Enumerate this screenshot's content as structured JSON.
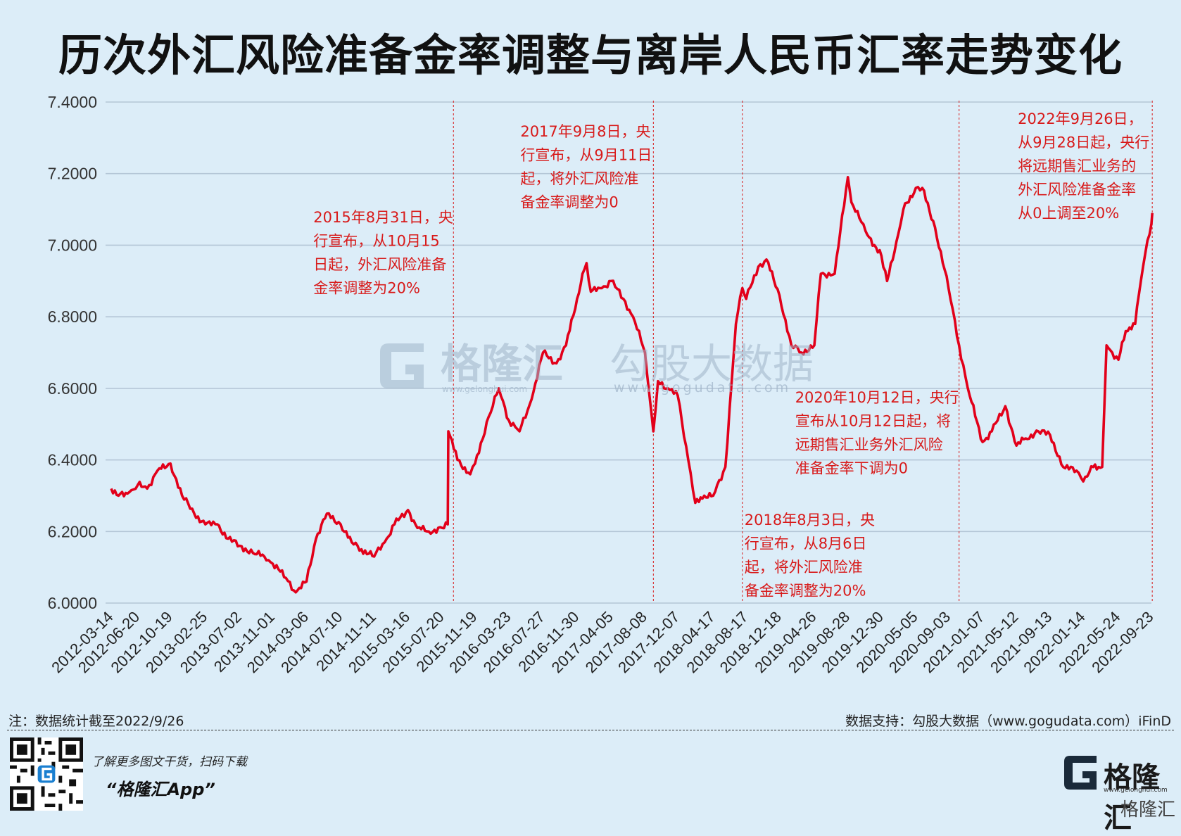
{
  "title": "历次外汇风险准备金率调整与离岸人民币汇率走势变化",
  "footer": {
    "note": "注：数据统计截至2022/9/26",
    "source": "数据支持：勾股大数据（www.gogudata.com）iFinD",
    "promo": "了解更多图文干货，扫码下载",
    "app": "“格隆汇App”",
    "brand": "格隆汇",
    "brand_url": "www.gelonghui.com",
    "brand_sub": "格隆汇"
  },
  "watermark": {
    "left_text": "格隆汇",
    "left_url": "www.gelonghui.com",
    "right_text": "勾股大数据",
    "right_url": "www.gogudata.com"
  },
  "colors": {
    "line": "#e2001a",
    "annotation": "#d81a1a",
    "grid": "#b4c6d6",
    "background": "#dcedf8"
  },
  "chart_data": {
    "type": "line",
    "title": "历次外汇风险准备金率调整与离岸人民币汇率走势变化",
    "xlabel": "",
    "ylabel": "",
    "ylim": [
      6.0,
      7.4
    ],
    "ytick_labels": [
      "6.0000",
      "6.2000",
      "6.4000",
      "6.6000",
      "6.8000",
      "7.0000",
      "7.2000",
      "7.4000"
    ],
    "ytick_values": [
      6.0,
      6.2,
      6.4,
      6.6,
      6.8,
      7.0,
      7.2,
      7.4
    ],
    "xtick_labels": [
      "2012-03-14",
      "2012-06-20",
      "2012-10-19",
      "2013-02-25",
      "2013-07-02",
      "2013-11-01",
      "2014-03-06",
      "2014-07-10",
      "2014-11-11",
      "2015-03-16",
      "2015-07-20",
      "2015-11-19",
      "2016-03-23",
      "2016-07-27",
      "2016-11-30",
      "2017-04-05",
      "2017-08-08",
      "2017-12-07",
      "2018-04-17",
      "2018-08-17",
      "2018-12-18",
      "2019-04-26",
      "2019-08-28",
      "2019-12-30",
      "2020-05-05",
      "2020-09-03",
      "2021-01-07",
      "2021-05-12",
      "2021-09-13",
      "2022-01-14",
      "2022-05-24",
      "2022-09-23"
    ],
    "grid": true,
    "series": [
      {
        "x": [
          "2012-03-14",
          "2012-04-10",
          "2012-05-20",
          "2012-06-20",
          "2012-07-25",
          "2012-09-01",
          "2012-10-19",
          "2012-12-01",
          "2013-01-15",
          "2013-02-25",
          "2013-04-10",
          "2013-05-20",
          "2013-07-02",
          "2013-08-20",
          "2013-10-01",
          "2013-11-01",
          "2013-12-20",
          "2014-01-25",
          "2014-03-06",
          "2014-04-10",
          "2014-05-20",
          "2014-07-10",
          "2014-08-20",
          "2014-09-25",
          "2014-11-11",
          "2014-12-20",
          "2015-01-25",
          "2015-03-16",
          "2015-04-20",
          "2015-06-01",
          "2015-07-20",
          "2015-08-10",
          "2015-08-12",
          "2015-09-15",
          "2015-11-01",
          "2015-11-19",
          "2016-01-08",
          "2016-02-15",
          "2016-03-23",
          "2016-05-01",
          "2016-06-15",
          "2016-07-27",
          "2016-09-15",
          "2016-10-20",
          "2016-11-30",
          "2016-12-20",
          "2017-01-04",
          "2017-01-20",
          "2017-03-01",
          "2017-04-05",
          "2017-05-20",
          "2017-06-25",
          "2017-08-08",
          "2017-09-08",
          "2017-09-25",
          "2017-11-01",
          "2017-12-07",
          "2018-01-15",
          "2018-02-10",
          "2018-03-15",
          "2018-04-17",
          "2018-06-01",
          "2018-07-10",
          "2018-08-03",
          "2018-08-17",
          "2018-10-01",
          "2018-10-31",
          "2018-12-18",
          "2019-01-31",
          "2019-03-10",
          "2019-04-26",
          "2019-05-20",
          "2019-07-10",
          "2019-08-28",
          "2019-09-10",
          "2019-11-01",
          "2019-12-30",
          "2020-01-20",
          "2020-03-01",
          "2020-03-20",
          "2020-05-05",
          "2020-05-29",
          "2020-07-15",
          "2020-09-03",
          "2020-10-12",
          "2020-11-20",
          "2021-01-07",
          "2021-02-10",
          "2021-04-01",
          "2021-05-12",
          "2021-06-15",
          "2021-08-01",
          "2021-09-13",
          "2021-11-01",
          "2021-12-20",
          "2022-01-14",
          "2022-02-20",
          "2022-03-25",
          "2022-04-10",
          "2022-05-01",
          "2022-05-24",
          "2022-06-20",
          "2022-07-25",
          "2022-08-15",
          "2022-09-01",
          "2022-09-16",
          "2022-09-23",
          "2022-09-26"
        ],
        "values": [
          6.32,
          6.3,
          6.31,
          6.33,
          6.32,
          6.37,
          6.39,
          6.3,
          6.25,
          6.22,
          6.22,
          6.18,
          6.16,
          6.14,
          6.13,
          6.11,
          6.07,
          6.03,
          6.06,
          6.18,
          6.25,
          6.22,
          6.17,
          6.15,
          6.13,
          6.17,
          6.22,
          6.26,
          6.21,
          6.2,
          6.21,
          6.22,
          6.48,
          6.4,
          6.36,
          6.39,
          6.52,
          6.6,
          6.51,
          6.48,
          6.57,
          6.7,
          6.67,
          6.72,
          6.85,
          6.92,
          6.95,
          6.87,
          6.88,
          6.9,
          6.85,
          6.8,
          6.7,
          6.48,
          6.62,
          6.6,
          6.58,
          6.4,
          6.28,
          6.3,
          6.3,
          6.38,
          6.78,
          6.88,
          6.85,
          6.94,
          6.96,
          6.86,
          6.72,
          6.7,
          6.72,
          6.92,
          6.92,
          7.19,
          7.12,
          7.04,
          6.97,
          6.9,
          7.03,
          7.1,
          7.16,
          7.16,
          7.05,
          6.88,
          6.72,
          6.58,
          6.45,
          6.48,
          6.55,
          6.44,
          6.46,
          6.48,
          6.47,
          6.38,
          6.37,
          6.34,
          6.38,
          6.38,
          6.72,
          6.7,
          6.68,
          6.76,
          6.78,
          6.9,
          6.98,
          7.03,
          7.06,
          7.09
        ]
      }
    ],
    "event_lines": [
      {
        "date": "2015-08-31",
        "text": "2015年8月31日，央行宣布，从10月15日起，外汇风险准备金率调整为20%"
      },
      {
        "date": "2017-09-08",
        "text": "2017年9月8日，央行宣布，从9月11日起，将外汇风险准备金率调整为0"
      },
      {
        "date": "2018-08-03",
        "text": "2018年8月3日，央行宣布，从8月6日起，将外汇风险准备金率调整为20%"
      },
      {
        "date": "2020-10-12",
        "text": "2020年10月12日，央行宣布从10月12日起，将远期售汇业务外汇风险准备金率下调为0"
      },
      {
        "date": "2022-09-26",
        "text": "2022年9月26日，从9月28日起，央行将远期售汇业务的外汇风险准备金率从0上调至20%"
      }
    ],
    "annotation_lines": [
      [
        "2015年8月31日，央",
        "行宣布，从10月15",
        "日起，外汇风险准备",
        "金率调整为20%"
      ],
      [
        "2017年9月8日，央",
        "行宣布，从9月11日",
        "起，将外汇风险准",
        "备金率调整为0"
      ],
      [
        "2018年8月3日，央",
        "行宣布，从8月6日",
        "起，将外汇风险准",
        "备金率调整为20%"
      ],
      [
        "2020年10月12日，央行",
        "宣布从10月12日起，将",
        "远期售汇业务外汇风险",
        "准备金率下调为0"
      ],
      [
        "2022年9月26日，",
        "从9月28日起，央行",
        "将远期售汇业务的",
        "外汇风险准备金率",
        "从0上调至20%"
      ]
    ]
  }
}
